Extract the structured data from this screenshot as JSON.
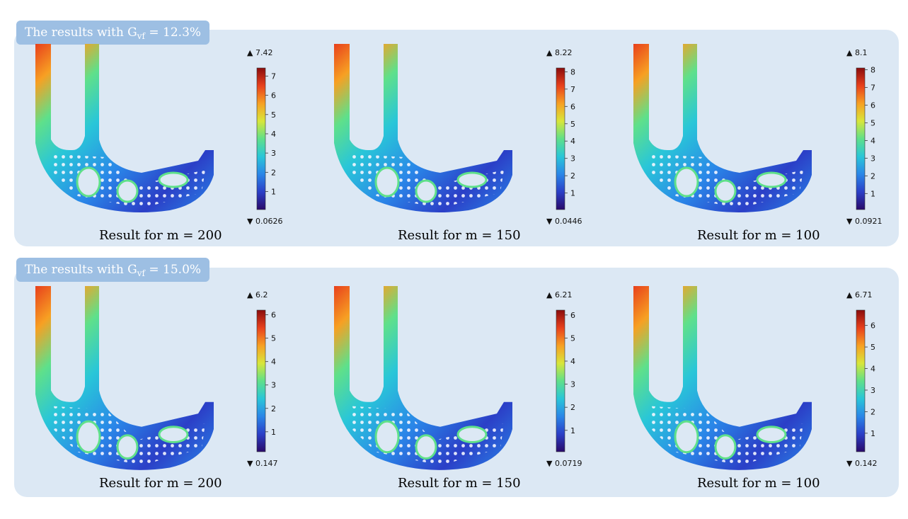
{
  "groups": [
    {
      "tag_prefix": "The results with G",
      "tag_sub": "vf",
      "tag_suffix": " = 12.3%",
      "results": [
        {
          "label": "Result for m = 200",
          "max": "7.42",
          "min": "0.0626",
          "ticks": [
            "1",
            "2",
            "3",
            "4",
            "5",
            "6",
            "7"
          ],
          "max_val": 7.42,
          "min_val": 0.0626
        },
        {
          "label": "Result for m = 150",
          "max": "8.22",
          "min": "0.0446",
          "ticks": [
            "1",
            "2",
            "3",
            "4",
            "5",
            "6",
            "7",
            "8"
          ],
          "max_val": 8.22,
          "min_val": 0.0446
        },
        {
          "label": "Result for m = 100",
          "max": "8.1",
          "min": "0.0921",
          "ticks": [
            "1",
            "2",
            "3",
            "4",
            "5",
            "6",
            "7",
            "8"
          ],
          "max_val": 8.1,
          "min_val": 0.0921
        }
      ]
    },
    {
      "tag_prefix": "The results with G",
      "tag_sub": "vf",
      "tag_suffix": " = 15.0%",
      "results": [
        {
          "label": "Result for m = 200",
          "max": "6.2",
          "min": "0.147",
          "ticks": [
            "1",
            "2",
            "3",
            "4",
            "5",
            "6"
          ],
          "max_val": 6.2,
          "min_val": 0.147
        },
        {
          "label": "Result for m = 150",
          "max": "6.21",
          "min": "0.0719",
          "ticks": [
            "1",
            "2",
            "3",
            "4",
            "5",
            "6"
          ],
          "max_val": 6.21,
          "min_val": 0.0719
        },
        {
          "label": "Result for m = 100",
          "max": "6.71",
          "min": "0.142",
          "ticks": [
            "1",
            "2",
            "3",
            "4",
            "5",
            "6"
          ],
          "max_val": 6.71,
          "min_val": 0.142
        }
      ]
    }
  ],
  "colormap": [
    "#2a0a6a",
    "#2b3fc7",
    "#2a86e8",
    "#29c6d8",
    "#5fe08a",
    "#d8e63a",
    "#f7a023",
    "#e8401c",
    "#8a0d0d"
  ],
  "lattice_dot_color": "#f4f6ff"
}
